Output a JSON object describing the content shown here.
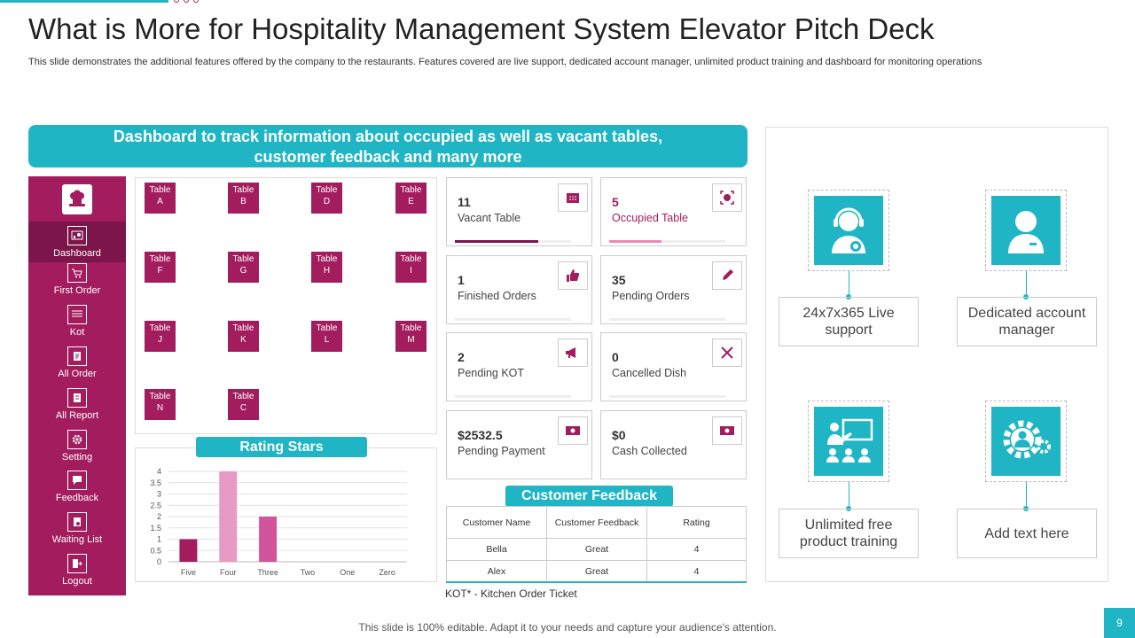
{
  "slide": {
    "title": "What is More for Hospitality Management System Elevator Pitch Deck",
    "subtitle": "This slide demonstrates the additional features offered by the company to the restaurants. Features covered are live  support, dedicated account manager, unlimited product training and dashboard for monitoring operations",
    "banner_line1": "Dashboard to track information about occupied as well as vacant tables,",
    "banner_line2": "customer feedback and many more",
    "footer": "This slide is 100% editable. Adapt it to your needs and capture your audience's attention.",
    "page_number": "9"
  },
  "sidebar": {
    "items": [
      {
        "label": "Dashboard",
        "icon": "dashboard-icon"
      },
      {
        "label": "First Order",
        "icon": "cart-icon"
      },
      {
        "label": "Kot",
        "icon": "list-icon"
      },
      {
        "label": "All Order",
        "icon": "document-icon"
      },
      {
        "label": "All Report",
        "icon": "report-icon"
      },
      {
        "label": "Setting",
        "icon": "gear-icon"
      },
      {
        "label": "Feedback",
        "icon": "feedback-icon"
      },
      {
        "label": "Waiting List",
        "icon": "clipboard-icon"
      },
      {
        "label": "Logout",
        "icon": "logout-icon"
      }
    ]
  },
  "tables": [
    {
      "l1": "Table",
      "l2": "A"
    },
    {
      "l1": "Table",
      "l2": "B"
    },
    {
      "l1": "Table",
      "l2": "D"
    },
    {
      "l1": "Table",
      "l2": "E"
    },
    {
      "l1": "Table",
      "l2": "F"
    },
    {
      "l1": "Table",
      "l2": "G"
    },
    {
      "l1": "Table",
      "l2": "H"
    },
    {
      "l1": "Table",
      "l2": "I"
    },
    {
      "l1": "Table",
      "l2": "J"
    },
    {
      "l1": "Table",
      "l2": "K"
    },
    {
      "l1": "Table",
      "l2": "L"
    },
    {
      "l1": "Table",
      "l2": "M"
    },
    {
      "l1": "Table",
      "l2": "N"
    },
    {
      "l1": "Table",
      "l2": "C"
    }
  ],
  "stats": [
    {
      "value": "11",
      "label": "Vacant Table",
      "icon": "calendar-icon",
      "progress": 0.72,
      "bar_color": "#7c1549"
    },
    {
      "value": "5",
      "label": "Occupied Table",
      "icon": "target-icon",
      "progress": 0.45,
      "bar_color": "#e889b8",
      "value_color": "#a21c5e"
    },
    {
      "value": "1",
      "label": "Finished Orders",
      "icon": "thumbs-up-icon"
    },
    {
      "value": "35",
      "label": "Pending Orders",
      "icon": "pencil-icon"
    },
    {
      "value": "2",
      "label": "Pending KOT",
      "icon": "megaphone-icon"
    },
    {
      "value": "0",
      "label": "Cancelled Dish",
      "icon": "cutlery-cross-icon"
    },
    {
      "value": "$2532.5",
      "label": "Pending Payment",
      "icon": "cash-icon"
    },
    {
      "value": "$0",
      "label": "Cash Collected",
      "icon": "cash-icon"
    }
  ],
  "rating": {
    "header": "Rating Stars"
  },
  "chart_data": {
    "type": "bar",
    "categories": [
      "Five",
      "Four",
      "Three",
      "Two",
      "One",
      "Zero"
    ],
    "values": [
      1,
      4,
      2,
      0,
      0,
      0
    ],
    "colors": [
      "#a21c5e",
      "#e79bc4",
      "#d1559a",
      "#d1559a",
      "#d1559a",
      "#d1559a"
    ],
    "ylim": [
      0,
      4
    ],
    "yticks": [
      "0",
      "0.5",
      "1",
      "1.5",
      "2",
      "2.5",
      "3",
      "3.5",
      "4"
    ],
    "grid": true
  },
  "feedback": {
    "header": "Customer Feedback",
    "columns": [
      "Customer Name",
      "Customer Feedback",
      "Rating"
    ],
    "rows": [
      [
        "Bella",
        "Great",
        "4"
      ],
      [
        "Alex",
        "Great",
        "4"
      ]
    ],
    "note": "KOT* - Kitchen Order Ticket"
  },
  "features": [
    {
      "label": "24x7x365 Live support",
      "icon": "support-agent-icon"
    },
    {
      "label": "Dedicated account manager",
      "icon": "manager-icon"
    },
    {
      "label": "Unlimited free product training",
      "icon": "training-icon"
    },
    {
      "label": "Add text here",
      "icon": "gear-user-icon"
    }
  ],
  "colors": {
    "primary": "#1fb5c4",
    "accent": "#a21c5e",
    "accent_dark": "#7c1549"
  }
}
